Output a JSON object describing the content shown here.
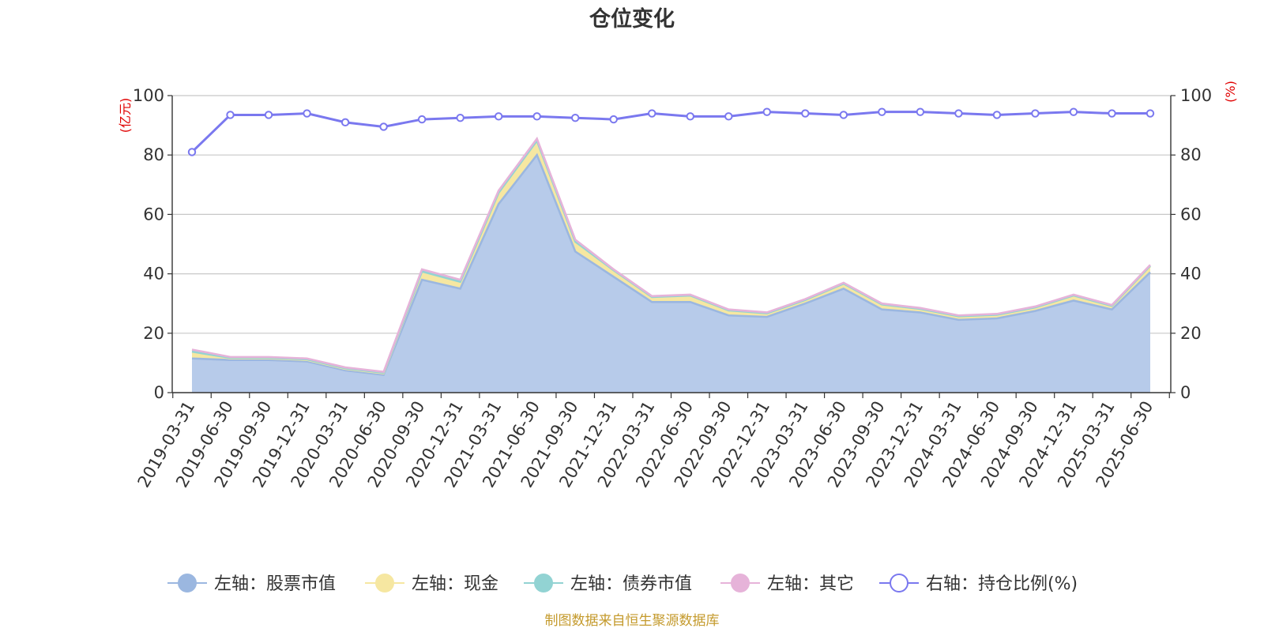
{
  "colors": {
    "stock": "#9bb7e0",
    "stock_fill": "#b7cbea",
    "cash": "#f6e7a1",
    "bond": "#92d3d3",
    "other": "#e6b3d9",
    "ratio": "#7a78ef",
    "unit": "#e00000",
    "source": "#c49a2c",
    "grid": "#c8c8c8",
    "axis": "#333333"
  },
  "source_note": "制图数据来自恒生聚源数据库",
  "chart_data": {
    "type": "area",
    "title": "仓位变化",
    "left_unit": "(亿元)",
    "right_unit": "(%)",
    "left_ylim": [
      0,
      100
    ],
    "right_ylim": [
      0,
      100
    ],
    "left_ticks": [
      "0",
      "20",
      "40",
      "60",
      "80",
      "100"
    ],
    "right_ticks": [
      "0",
      "20",
      "40",
      "60",
      "80",
      "100"
    ],
    "grid": true,
    "legend_position": "bottom",
    "categories": [
      "2019-03-31",
      "2019-06-30",
      "2019-09-30",
      "2019-12-31",
      "2020-03-31",
      "2020-06-30",
      "2020-09-30",
      "2020-12-31",
      "2021-03-31",
      "2021-06-30",
      "2021-09-30",
      "2021-12-31",
      "2022-03-31",
      "2022-06-30",
      "2022-09-30",
      "2022-12-31",
      "2023-03-31",
      "2023-06-30",
      "2023-09-30",
      "2023-12-31",
      "2024-03-31",
      "2024-06-30",
      "2024-09-30",
      "2024-12-31",
      "2025-03-31",
      "2025-06-30"
    ],
    "series": [
      {
        "key": "stock",
        "name": "左轴：股票市值",
        "axis": "left",
        "kind": "area",
        "values": [
          11.5,
          11.0,
          11.0,
          10.5,
          7.5,
          6.0,
          38.0,
          35.0,
          63.5,
          80.0,
          47.5,
          39.0,
          30.5,
          30.5,
          26.0,
          25.5,
          30.0,
          35.0,
          28.0,
          27.0,
          24.5,
          25.0,
          27.5,
          31.0,
          28.0,
          40.5
        ]
      },
      {
        "key": "cash",
        "name": "左轴：现金",
        "axis": "left",
        "kind": "area",
        "values": [
          2.0,
          0.5,
          0.5,
          0.5,
          0.5,
          0.5,
          2.5,
          2.0,
          3.5,
          4.5,
          3.0,
          2.0,
          1.5,
          2.0,
          1.5,
          1.0,
          1.0,
          1.5,
          1.5,
          1.0,
          1.0,
          1.0,
          1.0,
          1.5,
          1.0,
          2.0
        ]
      },
      {
        "key": "bond",
        "name": "左轴：债券市值",
        "axis": "left",
        "kind": "area",
        "values": [
          0.3,
          0.2,
          0.2,
          0.2,
          0.2,
          0.2,
          0.3,
          0.3,
          0.3,
          0.3,
          0.3,
          0.2,
          0.2,
          0.2,
          0.2,
          0.2,
          0.2,
          0.2,
          0.2,
          0.2,
          0.2,
          0.2,
          0.2,
          0.2,
          0.2,
          0.2
        ]
      },
      {
        "key": "other",
        "name": "左轴：其它",
        "axis": "left",
        "kind": "area",
        "values": [
          0.7,
          0.3,
          0.3,
          0.3,
          0.3,
          0.3,
          0.7,
          0.7,
          0.7,
          0.7,
          0.7,
          0.3,
          0.3,
          0.3,
          0.3,
          0.3,
          0.3,
          0.3,
          0.3,
          0.3,
          0.3,
          0.3,
          0.3,
          0.3,
          0.3,
          0.3
        ]
      },
      {
        "key": "ratio",
        "name": "右轴：持仓比例(%)",
        "axis": "right",
        "kind": "line",
        "values": [
          81.0,
          93.5,
          93.5,
          94.0,
          91.0,
          89.5,
          92.0,
          92.5,
          93.0,
          93.0,
          92.5,
          92.0,
          94.0,
          93.0,
          93.0,
          94.5,
          94.0,
          93.5,
          94.5,
          94.5,
          94.0,
          93.5,
          94.0,
          94.5,
          94.0,
          94.0
        ]
      }
    ]
  }
}
